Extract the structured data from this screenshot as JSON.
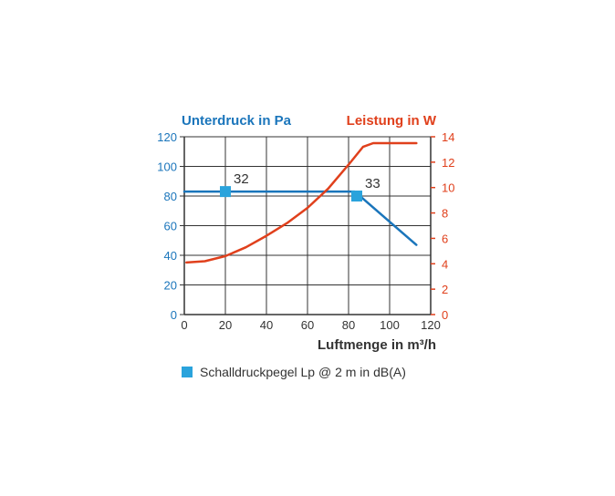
{
  "chart_data": {
    "type": "line",
    "x_axis": {
      "label": "Luftmenge in m³/h",
      "range": [
        0,
        120
      ],
      "ticks": [
        "0",
        "20",
        "40",
        "60",
        "80",
        "100",
        "120"
      ]
    },
    "y_left": {
      "label": "Unterdruck in Pa",
      "range": [
        0,
        120
      ],
      "ticks": [
        "0",
        "20",
        "40",
        "60",
        "80",
        "100",
        "120"
      ]
    },
    "y_right": {
      "label": "Leistung in W",
      "range": [
        0,
        14
      ],
      "ticks": [
        "0",
        "2",
        "4",
        "6",
        "8",
        "10",
        "12",
        "14"
      ]
    },
    "grid": true,
    "series": [
      {
        "axis": "left",
        "color": "#1a75bb",
        "x": [
          0,
          83,
          113
        ],
        "y": [
          83,
          83,
          47
        ]
      },
      {
        "axis": "right",
        "color": "#e0401c",
        "x": [
          1,
          10,
          20,
          30,
          40,
          50,
          60,
          70,
          80,
          87,
          92,
          96,
          100,
          113
        ],
        "y": [
          4.1,
          4.2,
          4.6,
          5.3,
          6.2,
          7.2,
          8.4,
          9.9,
          11.8,
          13.2,
          13.5,
          13.5,
          13.5,
          13.5
        ]
      }
    ],
    "markers": [
      {
        "x": 20,
        "y": 83,
        "label": "32"
      },
      {
        "x": 84,
        "y": 80,
        "label": "33"
      }
    ],
    "legend": {
      "label": "Schalldruckpegel Lp @ 2 m in dB(A)",
      "color": "#2aa3dc",
      "placement": "bottom-left"
    },
    "colors": {
      "left_axis": "#1a75bb",
      "right_axis": "#e0401c",
      "marker": "#2aa3dc",
      "grid": "#333333"
    }
  }
}
